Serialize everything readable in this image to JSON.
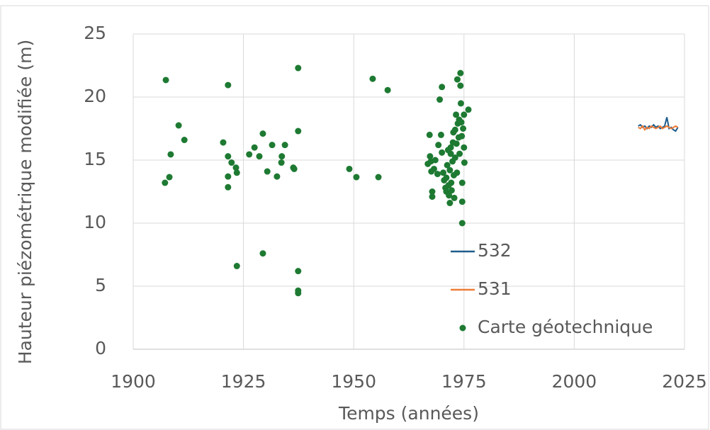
{
  "chart_data": {
    "type": "scatter",
    "xlabel": "Temps (années)",
    "ylabel": "Hauteur piézométrique modifiée (m)",
    "xlim": [
      1900,
      2025
    ],
    "xticks": [
      1900,
      1925,
      1950,
      1975,
      2000,
      2025
    ],
    "ylim": [
      0,
      25
    ],
    "yticks": [
      0,
      5,
      10,
      15,
      20,
      25
    ],
    "grid": true,
    "legend": "lower right",
    "series": [
      {
        "name": "532",
        "color": "#1f5c8b",
        "mode": "line",
        "x": [
          2014.5,
          2015,
          2015.5,
          2016,
          2016.5,
          2017,
          2017.5,
          2018,
          2018.5,
          2019,
          2019.5,
          2020,
          2020.5,
          2021,
          2021.5,
          2022,
          2022.5,
          2023,
          2023.5
        ],
        "values": [
          17.7,
          17.8,
          17.6,
          17.7,
          17.5,
          17.7,
          17.6,
          17.8,
          17.6,
          17.7,
          17.5,
          17.6,
          17.7,
          18.4,
          17.5,
          17.6,
          17.4,
          17.3,
          17.6
        ]
      },
      {
        "name": "531",
        "color": "#ee7d37",
        "mode": "line",
        "x": [
          2014.5,
          2015,
          2015.5,
          2016,
          2016.5,
          2017,
          2017.5,
          2018,
          2018.5,
          2019,
          2019.5,
          2020,
          2020.5,
          2021,
          2021.5,
          2022,
          2022.5,
          2023,
          2023.5
        ],
        "values": [
          17.6,
          17.5,
          17.7,
          17.4,
          17.6,
          17.5,
          17.7,
          17.6,
          17.5,
          17.6,
          17.7,
          17.5,
          17.6,
          17.7,
          17.6,
          17.5,
          17.6,
          17.7,
          17.6
        ]
      },
      {
        "name": "Carte géotechnique",
        "color": "#1e7a32",
        "mode": "markers",
        "x": [
          1907.4,
          1907.2,
          1908.2,
          1908.5,
          1910.3,
          1911.6,
          1920.4,
          1921.5,
          1921.5,
          1922.3,
          1921.5,
          1921.5,
          1923.3,
          1923.5,
          1923.5,
          1926.3,
          1927.5,
          1928.6,
          1929.4,
          1929.4,
          1930.4,
          1931.5,
          1932.6,
          1933.6,
          1933.7,
          1934.4,
          1936.3,
          1936.5,
          1937.4,
          1937.4,
          1937.4,
          1937.4,
          1937.4,
          1949.0,
          1950.6,
          1954.3,
          1955.6,
          1957.7,
          1966.8,
          1967.2,
          1967.3,
          1967.5,
          1967.6,
          1967.8,
          1967.8,
          1968.2,
          1968.5,
          1969,
          1969.2,
          1969.5,
          1969.8,
          1970,
          1970,
          1970.3,
          1970.5,
          1970.8,
          1971,
          1971,
          1971.2,
          1971.4,
          1971.5,
          1971.6,
          1971.8,
          1971.8,
          1972,
          1972,
          1972.1,
          1972.2,
          1972.4,
          1972.5,
          1972.6,
          1972.7,
          1972.8,
          1973,
          1973,
          1973.2,
          1973.3,
          1973.4,
          1973.5,
          1973.6,
          1973.8,
          1973.9,
          1974,
          1974.2,
          1974.2,
          1974.3,
          1974.4,
          1974.5,
          1974.6,
          1974.6,
          1974.6,
          1974.8,
          1975,
          1975,
          1976,
          1975.1
        ],
        "values": [
          21.35,
          13.2,
          13.65,
          15.45,
          17.75,
          16.6,
          16.4,
          20.95,
          15.3,
          14.8,
          13.7,
          12.85,
          14.4,
          14.0,
          6.6,
          15.45,
          16.0,
          15.3,
          17.1,
          7.6,
          14.1,
          16.2,
          13.7,
          14.8,
          15.3,
          16.2,
          14.4,
          14.3,
          22.3,
          17.3,
          6.2,
          4.65,
          4.45,
          14.3,
          13.65,
          21.45,
          13.65,
          20.55,
          14.7,
          17.0,
          15.3,
          14.9,
          14.1,
          12.5,
          12.1,
          14.3,
          15.0,
          13.9,
          16.2,
          19.8,
          17.0,
          20.8,
          15.6,
          14.0,
          13.4,
          12.8,
          12.5,
          13.6,
          14.6,
          15.8,
          13.0,
          12.2,
          11.6,
          14.2,
          16.0,
          15.5,
          13.2,
          12.6,
          14.9,
          16.4,
          17.2,
          13.8,
          12.0,
          15.2,
          17.4,
          18.6,
          16.3,
          14.0,
          21.4,
          17.9,
          16.8,
          18.2,
          15.5,
          21.9,
          20.9,
          19.5,
          18.0,
          16.9,
          13.2,
          11.7,
          10.0,
          17.5,
          18.6,
          16.0,
          19.0,
          14.8
        ]
      }
    ]
  }
}
